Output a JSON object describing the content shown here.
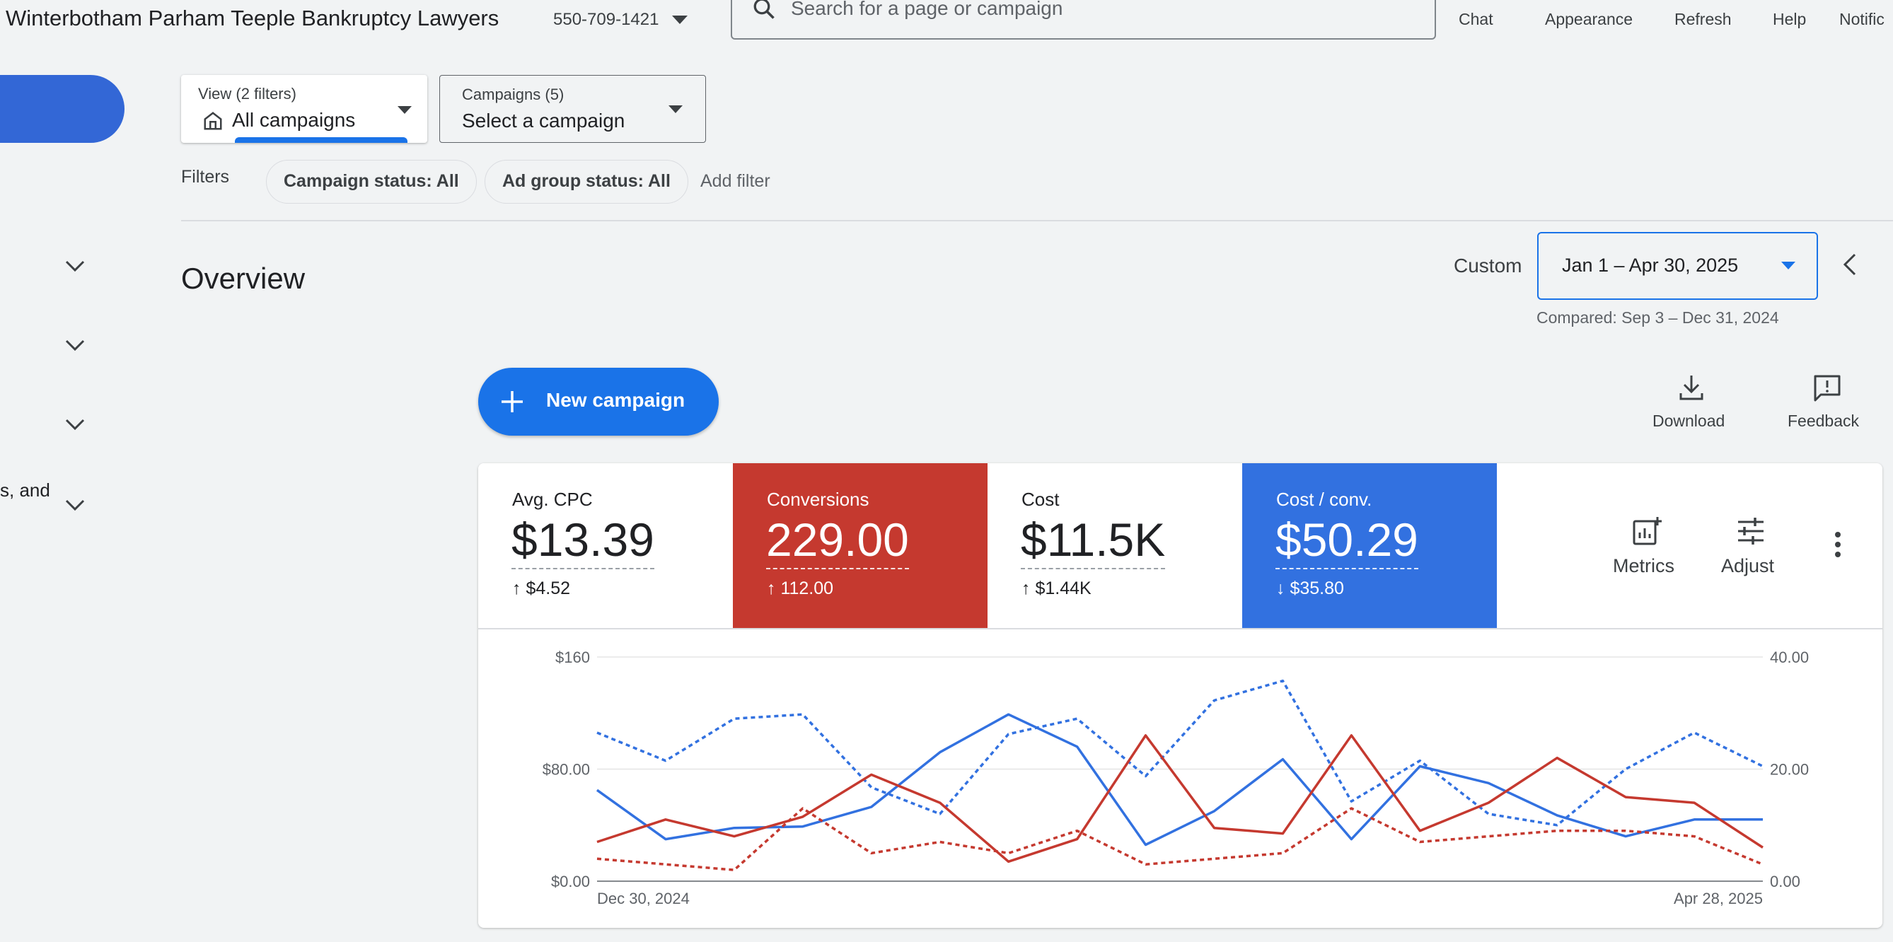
{
  "header": {
    "account_name": "Winterbotham Parham Teeple Bankruptcy Lawyers",
    "account_id": "550-709-1421",
    "search_placeholder": "Search for a page or campaign",
    "buttons": [
      "Chat",
      "Appearance",
      "Refresh",
      "Help",
      "Notific"
    ]
  },
  "nav": {
    "partial_text": "s, and"
  },
  "view_selector": {
    "label": "View (2 filters)",
    "value": "All campaigns"
  },
  "campaign_selector": {
    "label": "Campaigns (5)",
    "value": "Select a campaign"
  },
  "filters": {
    "label": "Filters",
    "chips": [
      "Campaign status: All",
      "Ad group status: All"
    ],
    "add": "Add filter"
  },
  "overview": {
    "title": "Overview",
    "range_type": "Custom",
    "date_range": "Jan 1 – Apr 30, 2025",
    "compared": "Compared: Sep 3 – Dec 31, 2024"
  },
  "actions": {
    "new_campaign": "New campaign",
    "download": "Download",
    "feedback": "Feedback"
  },
  "metrics": [
    {
      "name": "Avg. CPC",
      "value": "$13.39",
      "delta": "$4.52",
      "direction": "up",
      "color": "#ffffff",
      "text": "#202124"
    },
    {
      "name": "Conversions",
      "value": "229.00",
      "delta": "112.00",
      "direction": "up",
      "color": "#c5392f",
      "text": "#ffffff"
    },
    {
      "name": "Cost",
      "value": "$11.5K",
      "delta": "$1.44K",
      "direction": "up",
      "color": "#ffffff",
      "text": "#202124"
    },
    {
      "name": "Cost / conv.",
      "value": "$50.29",
      "delta": "$35.80",
      "direction": "down",
      "color": "#3271e0",
      "text": "#ffffff"
    }
  ],
  "card_tools": {
    "metrics": "Metrics",
    "adjust": "Adjust"
  },
  "chart_data": {
    "type": "line",
    "x_start_label": "Dec 30, 2024",
    "x_end_label": "Apr 28, 2025",
    "y_left_ticks": [
      "$0.00",
      "$80.00",
      "$160"
    ],
    "y_left_range": [
      0,
      160
    ],
    "y_right_ticks": [
      "0.00",
      "20.00",
      "40.00"
    ],
    "y_right_range": [
      0,
      40
    ],
    "grid": true,
    "series": [
      {
        "color": "#3271e0",
        "style": "solid",
        "axis": "left",
        "values": [
          65,
          30,
          38,
          39,
          53,
          92,
          119,
          96,
          26,
          50,
          87,
          30,
          82,
          70,
          47,
          32,
          44,
          44
        ]
      },
      {
        "color": "#3271e0",
        "style": "dashed",
        "axis": "left",
        "values": [
          106,
          86,
          116,
          119,
          67,
          48,
          105,
          116,
          75,
          129,
          143,
          57,
          86,
          48,
          40,
          80,
          106,
          82
        ]
      },
      {
        "color": "#c5392f",
        "style": "solid",
        "axis": "right",
        "values": [
          7,
          11,
          8,
          11.5,
          19,
          14,
          3.5,
          7.5,
          26,
          9.5,
          8.5,
          26,
          9,
          14,
          22,
          15,
          14,
          6
        ]
      },
      {
        "color": "#c5392f",
        "style": "dashed",
        "axis": "right",
        "values": [
          4,
          3,
          2,
          13,
          5,
          7,
          5,
          9,
          3,
          4,
          5,
          13,
          7,
          8,
          9,
          9,
          8,
          3
        ]
      }
    ]
  }
}
